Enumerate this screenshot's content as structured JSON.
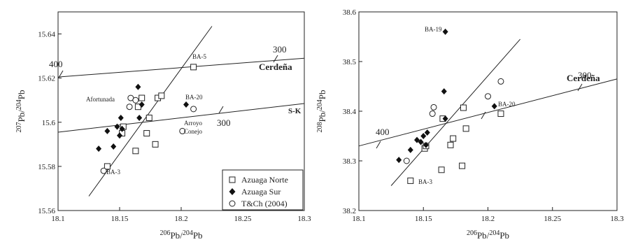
{
  "chart_data": [
    {
      "type": "scatter",
      "xlabel": "206Pb/204Pb",
      "ylabel": "207Pb/204Pb",
      "xlim": [
        18.1,
        18.3
      ],
      "ylim": [
        15.56,
        15.65
      ],
      "xticks": [
        "18.1",
        "18.15",
        "18.2",
        "18.25",
        "18.3"
      ],
      "yticks": [
        "15.56",
        "15.58",
        "15.6",
        "15.62",
        "15.64"
      ],
      "series": [
        {
          "name": "Azuaga Norte",
          "marker": "square",
          "x": [
            18.14,
            18.152,
            18.153,
            18.163,
            18.165,
            18.168,
            18.172,
            18.174,
            18.179,
            18.181,
            18.184,
            18.21
          ],
          "y": [
            15.58,
            15.595,
            15.598,
            15.587,
            15.607,
            15.611,
            15.595,
            15.602,
            15.59,
            15.611,
            15.612,
            15.625
          ]
        },
        {
          "name": "Azuaga Sur",
          "marker": "diamond",
          "x": [
            18.133,
            18.14,
            18.145,
            18.148,
            18.15,
            18.151,
            18.152,
            18.165,
            18.166,
            18.168,
            18.204
          ],
          "y": [
            15.588,
            15.596,
            15.589,
            15.598,
            15.594,
            15.602,
            15.597,
            15.616,
            15.602,
            15.608,
            15.608
          ]
        },
        {
          "name": "T&Ch (2004)",
          "marker": "circle",
          "x": [
            18.137,
            18.158,
            18.159,
            18.163,
            18.201,
            18.21
          ],
          "y": [
            15.578,
            15.607,
            15.611,
            15.61,
            15.596,
            15.606
          ]
        }
      ],
      "lines": [
        {
          "name": "Cerdeña",
          "points": [
            [
              18.1,
              15.6205
            ],
            [
              18.3,
              15.629
            ]
          ],
          "tick_labels": [
            "400",
            "300"
          ]
        },
        {
          "name": "S-K",
          "points": [
            [
              18.1,
              15.5955
            ],
            [
              18.3,
              15.6085
            ]
          ],
          "tick_labels": [
            "300"
          ]
        },
        {
          "name": "",
          "points": [
            [
              18.125,
              15.5665
            ],
            [
              18.225,
              15.6435
            ]
          ]
        }
      ],
      "annotations": [
        "BA-5",
        "BA-20",
        "BA-3",
        "Afortunada",
        "Arroyo",
        "Conejo",
        "Cerdeña",
        "S-K",
        "400",
        "300",
        "300"
      ]
    },
    {
      "type": "scatter",
      "xlabel": "206Pb/204Pb",
      "ylabel": "208Pb/204Pb",
      "xlim": [
        18.1,
        18.3
      ],
      "ylim": [
        38.2,
        38.6
      ],
      "xticks": [
        "18.1",
        "18.15",
        "18.2",
        "18.25",
        "18.3"
      ],
      "yticks": [
        "38.2",
        "38.3",
        "38.4",
        "38.5",
        "38.6"
      ],
      "series": [
        {
          "name": "Azuaga Norte",
          "marker": "square",
          "x": [
            18.14,
            18.151,
            18.152,
            18.164,
            18.165,
            18.171,
            18.173,
            18.18,
            18.181,
            18.183,
            18.21
          ],
          "y": [
            38.26,
            38.325,
            38.33,
            38.282,
            38.385,
            38.332,
            38.345,
            38.29,
            38.407,
            38.365,
            38.395
          ]
        },
        {
          "name": "Azuaga Sur",
          "marker": "diamond",
          "x": [
            18.131,
            18.14,
            18.145,
            18.148,
            18.15,
            18.152,
            18.153,
            18.166,
            18.167,
            18.167,
            18.205
          ],
          "y": [
            38.302,
            38.322,
            38.342,
            38.338,
            38.35,
            38.332,
            38.357,
            38.44,
            38.385,
            38.56,
            38.41
          ]
        },
        {
          "name": "T&Ch (2004)",
          "marker": "circle",
          "x": [
            18.137,
            18.157,
            18.158,
            18.2,
            18.21
          ],
          "y": [
            38.3,
            38.395,
            38.408,
            38.43,
            38.46
          ]
        }
      ],
      "lines": [
        {
          "name": "Cerdeña",
          "points": [
            [
              18.1,
              38.33
            ],
            [
              18.3,
              38.465
            ]
          ],
          "tick_labels": [
            "400",
            "300"
          ]
        },
        {
          "name": "",
          "points": [
            [
              18.125,
              38.25
            ],
            [
              18.225,
              38.545
            ]
          ]
        }
      ],
      "annotations": [
        "BA-19",
        "BA-20",
        "BA-3",
        "Cerdeña",
        "400",
        "300"
      ]
    }
  ],
  "legend": {
    "placement": "bottom-right of left plot",
    "items": [
      {
        "label": "Azuaga Norte",
        "marker": "square"
      },
      {
        "label": "Azuaga Sur",
        "marker": "diamond"
      },
      {
        "label": "T&Ch (2004)",
        "marker": "circle"
      }
    ]
  }
}
